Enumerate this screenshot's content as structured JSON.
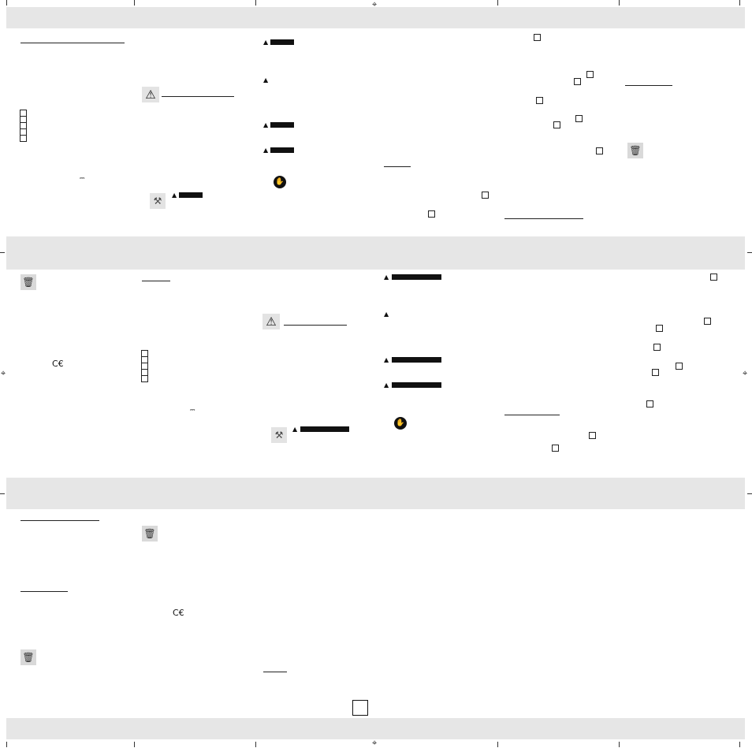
{
  "sheet": {
    "background": "#ffffff",
    "band_color": "#e6e6e6",
    "ink_color": "#1a1a1a"
  },
  "icons": {
    "registration": "registration-mark",
    "warning": "warning-triangle",
    "disposal": "crossed-out-bin",
    "gloves": "wear-gloves",
    "tool": "tool-pictogram",
    "ce": "CE-marking",
    "dc": "direct-current-symbol"
  },
  "marks": {
    "registration_glyph": "⌖",
    "warning_glyph": "⚠",
    "bin_glyph": "🗑",
    "hand_glyph": "✋",
    "tool_glyph": "⚒",
    "ce_glyph": "C€",
    "dc_glyph": "⎓",
    "small_warning_glyph": "▲"
  }
}
